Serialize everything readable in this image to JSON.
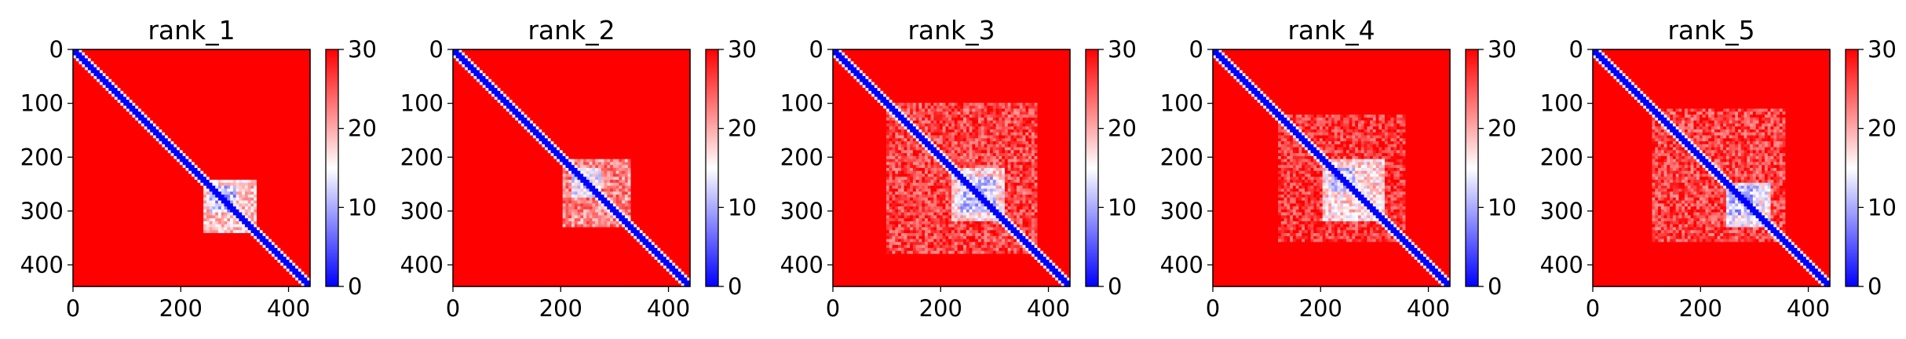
{
  "chart_data": [
    {
      "type": "heatmap",
      "title": "rank_1",
      "x_ticks": [
        0,
        200,
        400
      ],
      "y_ticks": [
        0,
        100,
        200,
        300,
        400
      ],
      "xlim": [
        0,
        440
      ],
      "ylim": [
        440,
        0
      ],
      "matrix_size": 440,
      "colorbar": {
        "range": [
          0,
          30
        ],
        "ticks": [
          0,
          10,
          20,
          30
        ],
        "colormap": "bwr"
      },
      "diagonal_value": 0,
      "background_value": 30,
      "features": [
        {
          "kind": "block",
          "range": [
            240,
            340
          ],
          "value": 13
        },
        {
          "kind": "block",
          "range": [
            255,
            305
          ],
          "value": 6
        }
      ]
    },
    {
      "type": "heatmap",
      "title": "rank_2",
      "x_ticks": [
        0,
        200,
        400
      ],
      "y_ticks": [
        0,
        100,
        200,
        300,
        400
      ],
      "xlim": [
        0,
        440
      ],
      "ylim": [
        440,
        0
      ],
      "matrix_size": 440,
      "colorbar": {
        "range": [
          0,
          30
        ],
        "ticks": [
          0,
          10,
          20,
          30
        ],
        "colormap": "bwr"
      },
      "diagonal_value": 0,
      "background_value": 30,
      "features": [
        {
          "kind": "block",
          "range": [
            205,
            330
          ],
          "value": 17
        },
        {
          "kind": "block",
          "range": [
            220,
            275
          ],
          "value": 9
        }
      ]
    },
    {
      "type": "heatmap",
      "title": "rank_3",
      "x_ticks": [
        0,
        200,
        400
      ],
      "y_ticks": [
        0,
        100,
        200,
        300,
        400
      ],
      "xlim": [
        0,
        440
      ],
      "ylim": [
        440,
        0
      ],
      "matrix_size": 440,
      "colorbar": {
        "range": [
          0,
          30
        ],
        "ticks": [
          0,
          10,
          20,
          30
        ],
        "colormap": "bwr"
      },
      "diagonal_value": 0,
      "background_value": 30,
      "features": [
        {
          "kind": "block",
          "range": [
            100,
            380
          ],
          "value": 21
        },
        {
          "kind": "block",
          "range": [
            220,
            320
          ],
          "value": 12
        },
        {
          "kind": "block",
          "range": [
            235,
            300
          ],
          "value": 7
        }
      ]
    },
    {
      "type": "heatmap",
      "title": "rank_4",
      "x_ticks": [
        0,
        200,
        400
      ],
      "y_ticks": [
        0,
        100,
        200,
        300,
        400
      ],
      "xlim": [
        0,
        440
      ],
      "ylim": [
        440,
        0
      ],
      "matrix_size": 440,
      "colorbar": {
        "range": [
          0,
          30
        ],
        "ticks": [
          0,
          10,
          20,
          30
        ],
        "colormap": "bwr"
      },
      "diagonal_value": 0,
      "background_value": 30,
      "features": [
        {
          "kind": "block",
          "range": [
            120,
            360
          ],
          "value": 22
        },
        {
          "kind": "block",
          "range": [
            205,
            320
          ],
          "value": 12
        },
        {
          "kind": "block",
          "range": [
            220,
            265
          ],
          "value": 7
        }
      ]
    },
    {
      "type": "heatmap",
      "title": "rank_5",
      "x_ticks": [
        0,
        200,
        400
      ],
      "y_ticks": [
        0,
        100,
        200,
        300,
        400
      ],
      "xlim": [
        0,
        440
      ],
      "ylim": [
        440,
        0
      ],
      "matrix_size": 440,
      "colorbar": {
        "range": [
          0,
          30
        ],
        "ticks": [
          0,
          10,
          20,
          30
        ],
        "colormap": "bwr"
      },
      "diagonal_value": 0,
      "background_value": 30,
      "features": [
        {
          "kind": "block",
          "range": [
            110,
            360
          ],
          "value": 21
        },
        {
          "kind": "block",
          "range": [
            245,
            330
          ],
          "value": 10
        },
        {
          "kind": "block",
          "range": [
            255,
            310
          ],
          "value": 6
        }
      ]
    }
  ]
}
